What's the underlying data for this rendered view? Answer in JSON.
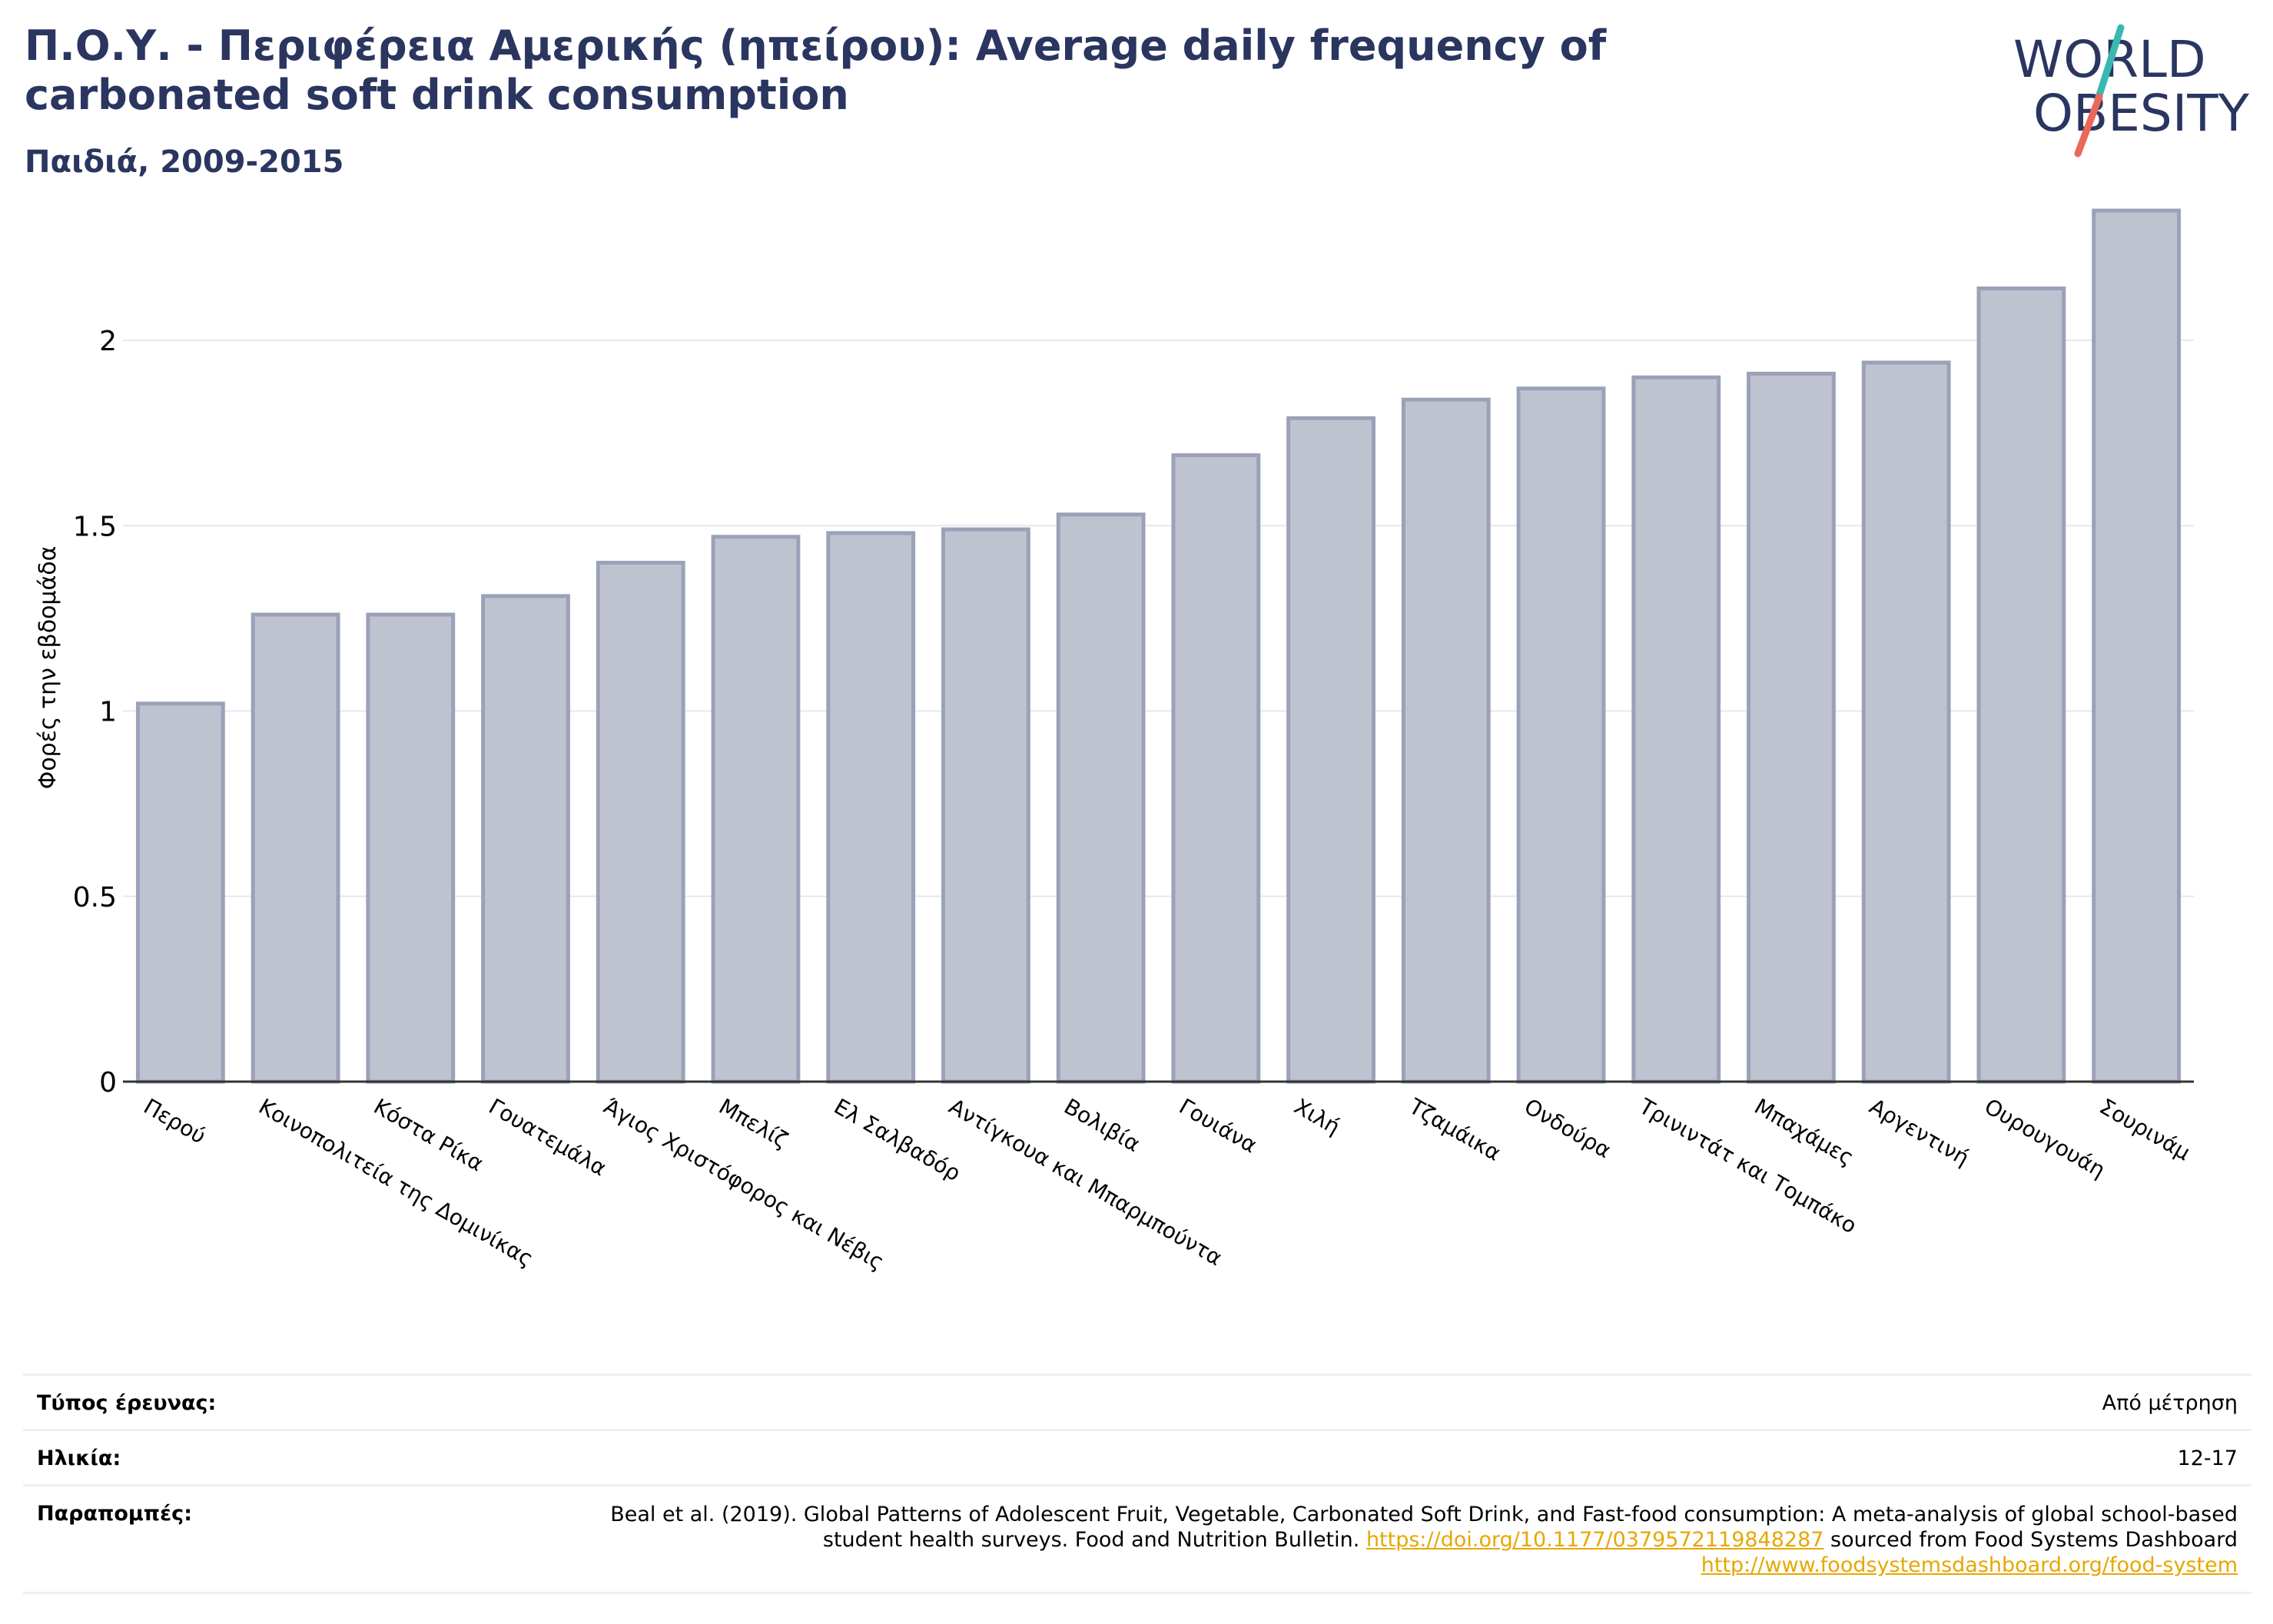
{
  "header": {
    "title": "Π.Ο.Υ. - Περιφέρεια Αμερικής (ηπείρου): Average daily frequency of carbonated soft drink consumption",
    "subtitle": "Παιδιά, 2009-2015"
  },
  "logo": {
    "line1": "WORLD",
    "line2": "OBESITY",
    "text_color": "#2a3560",
    "slash_color_top": "#3ab8b0",
    "slash_color_bottom": "#e8685a"
  },
  "colors": {
    "bar_fill": "#bfc3d0",
    "bar_stroke": "#9ba1b8",
    "title": "#2a3560",
    "grid": "#e6e8ef",
    "axis": "#333333",
    "link": "#e6a700"
  },
  "chart_data": {
    "type": "bar",
    "title": "",
    "xlabel": "",
    "ylabel": "Φορές την εβδομάδα",
    "ylim": [
      0,
      2.4
    ],
    "yticks": [
      0,
      0.5,
      1,
      1.5,
      2
    ],
    "ytick_labels": [
      "0",
      "0.5",
      "1",
      "1.5",
      "2"
    ],
    "grid": true,
    "categories": [
      "Περού",
      "Κοινοπολιτεία της Δομινίκας",
      "Κόστα Ρίκα",
      "Γουατεμάλα",
      "Άγιος Χριστόφορος και Νέβις",
      "Μπελίζ",
      "Ελ Σαλβαδόρ",
      "Αντίγκουα και Μπαρμπούντα",
      "Βολιβία",
      "Γουιάνα",
      "Χιλή",
      "Τζαμάικα",
      "Ονδούρα",
      "Τρινιντάτ και Τομπάκο",
      "Μπαχάμες",
      "Αργεντινή",
      "Ουρουγουάη",
      "Σουρινάμ"
    ],
    "values": [
      1.02,
      1.26,
      1.26,
      1.31,
      1.4,
      1.47,
      1.48,
      1.49,
      1.53,
      1.69,
      1.79,
      1.84,
      1.87,
      1.9,
      1.91,
      1.94,
      2.14,
      2.35
    ]
  },
  "meta": {
    "survey_type_label": "Τύπος έρευνας:",
    "survey_type_value": "Από μέτρηση",
    "age_label": "Ηλικία:",
    "age_value": "12-17",
    "refs_label": "Παραπομπές:",
    "refs_text_1": "Beal et al. (2019). Global Patterns of Adolescent Fruit, Vegetable, Carbonated Soft Drink, and Fast-food consumption: A meta-analysis of global school-based student health surveys. Food and Nutrition Bulletin.",
    "refs_link_1": "https://doi.org/10.1177/0379572119848287",
    "refs_text_2": "sourced from Food Systems Dashboard",
    "refs_link_2": "http://www.foodsystemsdashboard.org/food-system"
  }
}
